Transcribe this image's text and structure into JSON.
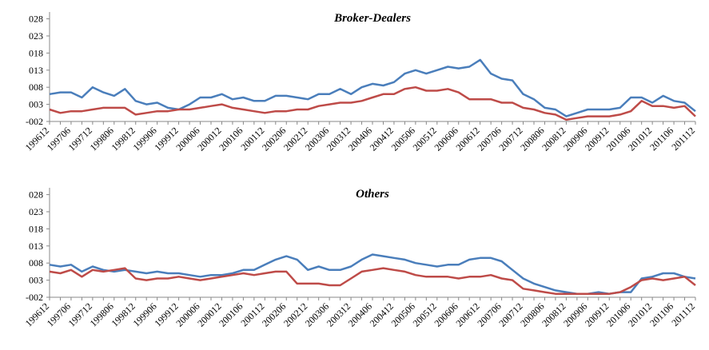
{
  "chart_data": [
    {
      "type": "line",
      "title": "Broker-Dealers",
      "categories": [
        "199612",
        null,
        "199706",
        null,
        "199712",
        null,
        "199806",
        null,
        "199812",
        null,
        "199906",
        null,
        "199912",
        null,
        "200006",
        null,
        "200012",
        null,
        "200106",
        null,
        "200112",
        null,
        "200206",
        null,
        "200212",
        null,
        "200306",
        null,
        "200312",
        null,
        "200406",
        null,
        "200412",
        null,
        "200506",
        null,
        "200512",
        null,
        "200606",
        null,
        "200612",
        null,
        "200706",
        null,
        "200712",
        null,
        "200806",
        null,
        "200812",
        null,
        "200906",
        null,
        "200912",
        null,
        "201006",
        null,
        "201012",
        null,
        "201106",
        null,
        "201112"
      ],
      "series": [
        {
          "color": "#4a7ebb",
          "values": [
            0.006,
            0.0065,
            0.0065,
            0.005,
            0.008,
            0.0065,
            0.0055,
            0.0075,
            0.004,
            0.003,
            0.0035,
            0.002,
            0.0015,
            0.003,
            0.005,
            0.005,
            0.006,
            0.0045,
            0.005,
            0.004,
            0.004,
            0.0055,
            0.0055,
            0.005,
            0.0045,
            0.006,
            0.006,
            0.0075,
            0.006,
            0.008,
            0.009,
            0.0085,
            0.0095,
            0.012,
            0.013,
            0.012,
            0.013,
            0.014,
            0.0135,
            0.014,
            0.016,
            0.012,
            0.0105,
            0.01,
            0.006,
            0.0045,
            0.002,
            0.0015,
            -0.0005,
            0.0005,
            0.0015,
            0.0015,
            0.0015,
            0.002,
            0.005,
            0.005,
            0.0035,
            0.0055,
            0.004,
            0.0035,
            0.001
          ]
        },
        {
          "color": "#be4b48",
          "values": [
            0.0015,
            0.0005,
            0.001,
            0.001,
            0.0015,
            0.002,
            0.002,
            0.002,
            0.0,
            0.0005,
            0.001,
            0.001,
            0.0015,
            0.0015,
            0.002,
            0.0025,
            0.003,
            0.002,
            0.0015,
            0.001,
            0.0005,
            0.001,
            0.001,
            0.0015,
            0.0015,
            0.0025,
            0.003,
            0.0035,
            0.0035,
            0.004,
            0.005,
            0.006,
            0.006,
            0.0075,
            0.008,
            0.007,
            0.007,
            0.0075,
            0.0065,
            0.0045,
            0.0045,
            0.0045,
            0.0035,
            0.0035,
            0.002,
            0.0015,
            0.0005,
            0.0,
            -0.0015,
            -0.001,
            -0.0005,
            -0.0005,
            -0.0005,
            0.0,
            0.001,
            0.004,
            0.0025,
            0.0025,
            0.002,
            0.0025,
            -0.0005
          ]
        }
      ],
      "ylim": [
        -0.002,
        0.03
      ],
      "yticks": [
        {
          "value": -0.002,
          "label": "-002"
        },
        {
          "value": 0.003,
          "label": "003"
        },
        {
          "value": 0.008,
          "label": "008"
        },
        {
          "value": 0.013,
          "label": "013"
        },
        {
          "value": 0.018,
          "label": "018"
        },
        {
          "value": 0.023,
          "label": "023"
        },
        {
          "value": 0.028,
          "label": "028"
        }
      ]
    },
    {
      "type": "line",
      "title": "Others",
      "categories": [
        "199612",
        null,
        "199706",
        null,
        "199712",
        null,
        "199806",
        null,
        "199812",
        null,
        "199906",
        null,
        "199912",
        null,
        "200006",
        null,
        "200012",
        null,
        "200106",
        null,
        "200112",
        null,
        "200206",
        null,
        "200212",
        null,
        "200306",
        null,
        "200312",
        null,
        "200406",
        null,
        "200412",
        null,
        "200506",
        null,
        "200512",
        null,
        "200606",
        null,
        "200612",
        null,
        "200706",
        null,
        "200712",
        null,
        "200806",
        null,
        "200812",
        null,
        "200906",
        null,
        "200912",
        null,
        "201006",
        null,
        "201012",
        null,
        "201106",
        null,
        "201112"
      ],
      "series": [
        {
          "color": "#4a7ebb",
          "values": [
            0.0075,
            0.007,
            0.0075,
            0.0055,
            0.007,
            0.006,
            0.0055,
            0.006,
            0.0055,
            0.005,
            0.0055,
            0.005,
            0.005,
            0.0045,
            0.004,
            0.0045,
            0.0045,
            0.005,
            0.006,
            0.006,
            0.0075,
            0.009,
            0.01,
            0.009,
            0.006,
            0.007,
            0.006,
            0.006,
            0.007,
            0.009,
            0.0105,
            0.01,
            0.0095,
            0.009,
            0.008,
            0.0075,
            0.007,
            0.0075,
            0.0075,
            0.009,
            0.0095,
            0.0095,
            0.0085,
            0.006,
            0.0035,
            0.002,
            0.001,
            0.0,
            -0.0005,
            -0.001,
            -0.001,
            -0.0005,
            -0.001,
            -0.0005,
            -0.0005,
            0.0035,
            0.004,
            0.005,
            0.005,
            0.004,
            0.0035
          ]
        },
        {
          "color": "#be4b48",
          "values": [
            0.0055,
            0.005,
            0.006,
            0.004,
            0.006,
            0.0055,
            0.006,
            0.0065,
            0.0035,
            0.003,
            0.0035,
            0.0035,
            0.004,
            0.0035,
            0.003,
            0.0035,
            0.004,
            0.0045,
            0.005,
            0.0045,
            0.005,
            0.0055,
            0.0055,
            0.002,
            0.002,
            0.002,
            0.0015,
            0.0015,
            0.0035,
            0.0055,
            0.006,
            0.0065,
            0.006,
            0.0055,
            0.0045,
            0.004,
            0.004,
            0.004,
            0.0035,
            0.004,
            0.004,
            0.0045,
            0.0035,
            0.003,
            0.0005,
            0.0,
            -0.0005,
            -0.001,
            -0.001,
            -0.001,
            -0.001,
            -0.001,
            -0.001,
            -0.0005,
            0.001,
            0.003,
            0.0035,
            0.003,
            0.0035,
            0.004,
            0.0015
          ]
        }
      ],
      "ylim": [
        -0.002,
        0.03
      ],
      "yticks": [
        {
          "value": -0.002,
          "label": "-002"
        },
        {
          "value": 0.003,
          "label": "003"
        },
        {
          "value": 0.008,
          "label": "008"
        },
        {
          "value": 0.013,
          "label": "013"
        },
        {
          "value": 0.018,
          "label": "018"
        },
        {
          "value": 0.023,
          "label": "023"
        },
        {
          "value": 0.028,
          "label": "028"
        }
      ]
    }
  ]
}
